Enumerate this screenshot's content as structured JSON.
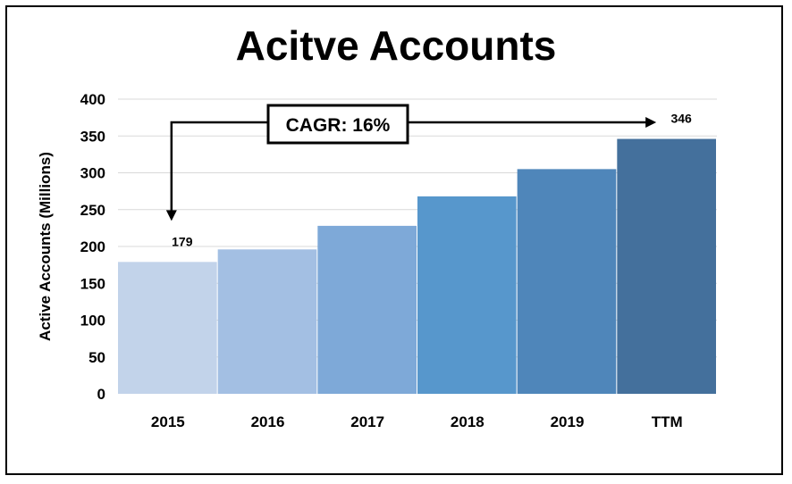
{
  "chart_data": {
    "type": "bar",
    "title": "Acitve Accounts",
    "xlabel": "",
    "ylabel": "Active Accounts (Millions)",
    "categories": [
      "2015",
      "2016",
      "2017",
      "2018",
      "2019",
      "TTM"
    ],
    "values": [
      179,
      196,
      228,
      268,
      305,
      346
    ],
    "data_labels": [
      "179",
      "",
      "",
      "",
      "",
      "346"
    ],
    "ylim": [
      0,
      400
    ],
    "yticks": [
      0,
      50,
      100,
      150,
      200,
      250,
      300,
      350,
      400
    ],
    "grid": true,
    "legend": "none",
    "annotation": {
      "text": "CAGR: 16%",
      "from_category": "2015",
      "to_category": "TTM"
    },
    "colors": [
      "#c2d3ea",
      "#a3bfe3",
      "#7ea9d8",
      "#5797cc",
      "#4f86ba",
      "#44709c"
    ]
  }
}
